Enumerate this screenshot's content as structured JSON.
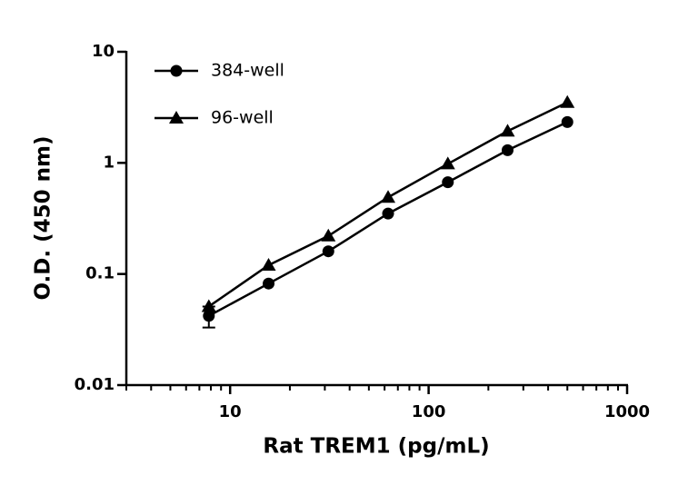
{
  "chart_data": {
    "type": "line",
    "x_label": "Rat TREM1 (pg/mL)",
    "y_label": "O.D. (450 nm)",
    "x": [
      7.8125,
      15.625,
      31.25,
      62.5,
      125,
      250,
      500
    ],
    "series": [
      {
        "name": "384-well",
        "color": "#000000",
        "marker": "circle",
        "values": [
          0.042,
          0.082,
          0.16,
          0.35,
          0.67,
          1.3,
          2.33
        ],
        "errors": [
          0.009,
          null,
          null,
          null,
          null,
          null,
          null
        ]
      },
      {
        "name": "96-well",
        "color": "#000000",
        "marker": "triangle",
        "values": [
          0.051,
          0.12,
          0.22,
          0.49,
          0.98,
          1.93,
          3.5
        ]
      }
    ],
    "xlim": [
      3,
      1000
    ],
    "ylim": [
      0.01,
      10
    ],
    "xticks": [
      10,
      100,
      1000
    ],
    "yticks": [
      0.01,
      0.1,
      1,
      10
    ],
    "xscale": "log",
    "yscale": "log",
    "legend": "top-left"
  }
}
